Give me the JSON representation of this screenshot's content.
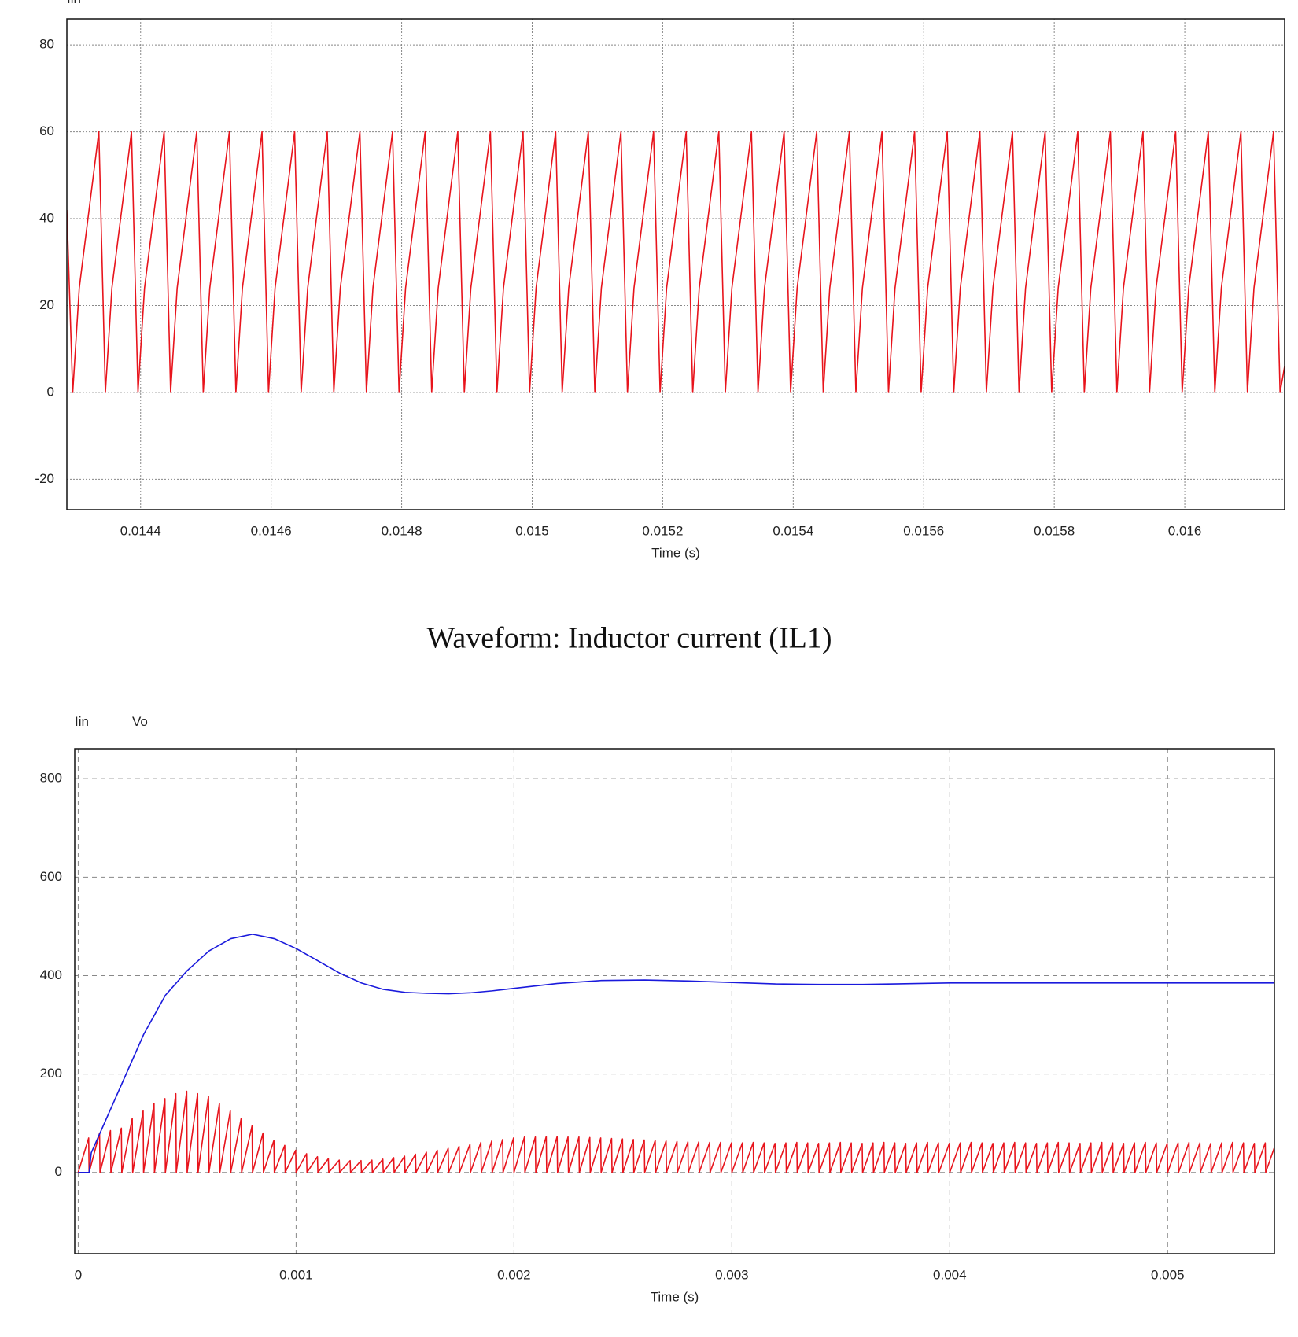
{
  "chart_data": [
    {
      "type": "line",
      "xlabel": "Time (s)",
      "grid": "dotted",
      "xlim": [
        0.014287,
        0.016153
      ],
      "ylim": [
        -27,
        86
      ],
      "xticks": [
        0.0144,
        0.0146,
        0.0148,
        0.015,
        0.0152,
        0.0154,
        0.0156,
        0.0158,
        0.016
      ],
      "yticks": [
        -20,
        0,
        20,
        40,
        60,
        80
      ],
      "series": [
        {
          "name": "Iin",
          "color": "#e8141c",
          "x": [
            0.014287,
            0.014296,
            0.014306,
            0.014336,
            0.014346,
            0.014356,
            0.014386,
            0.014396,
            0.014406,
            0.014436,
            0.014446,
            0.014456,
            0.014486,
            0.014496,
            0.014506,
            0.014536,
            0.014546,
            0.014556,
            0.014586,
            0.014596,
            0.014606,
            0.014636,
            0.014646,
            0.014656,
            0.014686,
            0.014696,
            0.014706,
            0.014736,
            0.014746,
            0.014756,
            0.014786,
            0.014796,
            0.014806,
            0.014836,
            0.014846,
            0.014856,
            0.014886,
            0.014896,
            0.014906,
            0.014936,
            0.014946,
            0.014956,
            0.014986,
            0.014996,
            0.015006,
            0.015036,
            0.015046,
            0.015056,
            0.015086,
            0.015096,
            0.015106,
            0.015136,
            0.015146,
            0.015156,
            0.015186,
            0.015196,
            0.015206,
            0.015236,
            0.015246,
            0.015256,
            0.015286,
            0.015296,
            0.015306,
            0.015336,
            0.015346,
            0.015356,
            0.015386,
            0.015396,
            0.015406,
            0.015436,
            0.015446,
            0.015456,
            0.015486,
            0.015496,
            0.015506,
            0.015536,
            0.015546,
            0.015556,
            0.015586,
            0.015596,
            0.015606,
            0.015636,
            0.015646,
            0.015656,
            0.015686,
            0.015696,
            0.015706,
            0.015736,
            0.015746,
            0.015756,
            0.015786,
            0.015796,
            0.015806,
            0.015836,
            0.015846,
            0.015856,
            0.015886,
            0.015896,
            0.015906,
            0.015936,
            0.015946,
            0.015956,
            0.015986,
            0.015996,
            0.016006,
            0.016036,
            0.016046,
            0.016056,
            0.016086,
            0.016096,
            0.016106,
            0.016136,
            0.016146,
            0.016153
          ],
          "values": [
            42,
            0,
            24,
            60,
            0,
            24,
            60,
            0,
            24,
            60,
            0,
            24,
            60,
            0,
            24,
            60,
            0,
            24,
            60,
            0,
            24,
            60,
            0,
            24,
            60,
            0,
            24,
            60,
            0,
            24,
            60,
            0,
            24,
            60,
            0,
            24,
            60,
            0,
            24,
            60,
            0,
            24,
            60,
            0,
            24,
            60,
            0,
            24,
            60,
            0,
            24,
            60,
            0,
            24,
            60,
            0,
            24,
            60,
            0,
            24,
            60,
            0,
            24,
            60,
            0,
            24,
            60,
            0,
            24,
            60,
            0,
            24,
            60,
            0,
            24,
            60,
            0,
            24,
            60,
            0,
            24,
            60,
            0,
            24,
            60,
            0,
            24,
            60,
            0,
            24,
            60,
            0,
            24,
            60,
            0,
            24,
            60,
            0,
            24,
            60,
            0,
            24,
            60,
            0,
            24,
            60,
            0,
            24,
            60,
            0,
            24,
            60,
            0,
            6
          ]
        }
      ]
    },
    {
      "type": "line",
      "xlabel": "Time (s)",
      "grid": "dashed",
      "xlim": [
        -1.6e-05,
        0.00549
      ],
      "ylim": [
        -165,
        861
      ],
      "xticks": [
        0,
        0.001,
        0.002,
        0.003,
        0.004,
        0.005
      ],
      "yticks": [
        0,
        200,
        400,
        600,
        800
      ],
      "series": [
        {
          "name": "Iin",
          "color": "#e8141c",
          "x": [
            0,
            4.8e-05,
            5e-05,
            9.8e-05,
            0.0001,
            0.000148,
            0.00015,
            0.000198,
            0.0002,
            0.000248,
            0.00025,
            0.000298,
            0.0003,
            0.000348,
            0.00035,
            0.000398,
            0.0004,
            0.000448,
            0.00045,
            0.000498,
            0.0005,
            0.000548,
            0.00055,
            0.000598,
            0.0006,
            0.000648,
            0.00065,
            0.000698,
            0.0007,
            0.000748,
            0.00075,
            0.000798,
            0.0008,
            0.000848,
            0.00085,
            0.000898,
            0.0009,
            0.000948,
            0.00095,
            0.000998,
            0.001,
            0.001048,
            0.00105,
            0.001098,
            0.0011,
            0.001148,
            0.00115,
            0.001198,
            0.0012,
            0.001248,
            0.00125,
            0.001298,
            0.0013,
            0.001348,
            0.00135,
            0.001398,
            0.0014,
            0.001448,
            0.00145,
            0.001498,
            0.0015,
            0.001548,
            0.00155,
            0.001598,
            0.0016,
            0.001648,
            0.00165,
            0.001698,
            0.0017,
            0.001748,
            0.00175,
            0.001798,
            0.0018,
            0.001848,
            0.00185,
            0.001898,
            0.0019,
            0.001948,
            0.00195,
            0.001998,
            0.002,
            0.002048,
            0.00205,
            0.002098,
            0.0021,
            0.002148,
            0.00215,
            0.002198,
            0.0022,
            0.002248,
            0.00225,
            0.002298,
            0.0023,
            0.002348,
            0.00235,
            0.002398,
            0.0024,
            0.002448,
            0.00245,
            0.002498,
            0.0025,
            0.002548,
            0.00255,
            0.002598,
            0.0026,
            0.002648,
            0.00265,
            0.002698,
            0.0027,
            0.002748,
            0.00275,
            0.002798,
            0.0028,
            0.002848,
            0.00285,
            0.002898,
            0.0029,
            0.002948,
            0.00295,
            0.002998,
            0.003,
            0.003048,
            0.00305,
            0.003098,
            0.0031,
            0.003148,
            0.00315,
            0.003198,
            0.0032,
            0.003248,
            0.00325,
            0.003298,
            0.0033,
            0.003348,
            0.00335,
            0.003398,
            0.0034,
            0.003448,
            0.00345,
            0.003498,
            0.0035,
            0.003548,
            0.00355,
            0.003598,
            0.0036,
            0.003648,
            0.00365,
            0.003698,
            0.0037,
            0.003748,
            0.00375,
            0.003798,
            0.0038,
            0.003848,
            0.00385,
            0.003898,
            0.0039,
            0.003948,
            0.00395,
            0.003998,
            0.004,
            0.004048,
            0.00405,
            0.004098,
            0.0041,
            0.004148,
            0.00415,
            0.004198,
            0.0042,
            0.004248,
            0.00425,
            0.004298,
            0.0043,
            0.004348,
            0.00435,
            0.004398,
            0.0044,
            0.004448,
            0.00445,
            0.004498,
            0.0045,
            0.004548,
            0.00455,
            0.004598,
            0.0046,
            0.004648,
            0.00465,
            0.004698,
            0.0047,
            0.004748,
            0.00475,
            0.004798,
            0.0048,
            0.004848,
            0.00485,
            0.004898,
            0.0049,
            0.004948,
            0.00495,
            0.004998,
            0.005,
            0.005048,
            0.00505,
            0.005098,
            0.0051,
            0.005148,
            0.00515,
            0.005198,
            0.0052,
            0.005248,
            0.00525,
            0.005298,
            0.0053,
            0.005348,
            0.00535,
            0.005398,
            0.0054,
            0.005448,
            0.00545,
            0.005498,
            0.0055
          ],
          "values": [
            0,
            70,
            0,
            80,
            0,
            85,
            0,
            90,
            0,
            110,
            0,
            125,
            0,
            140,
            0,
            150,
            0,
            160,
            0,
            165,
            0,
            160,
            0,
            155,
            0,
            140,
            0,
            125,
            0,
            110,
            0,
            95,
            0,
            80,
            0,
            65,
            0,
            55,
            0,
            45,
            0,
            38,
            0,
            32,
            0,
            28,
            0,
            25,
            0,
            24,
            0,
            24,
            0,
            25,
            0,
            27,
            0,
            30,
            0,
            33,
            0,
            37,
            0,
            41,
            0,
            45,
            0,
            49,
            0,
            53,
            0,
            57,
            0,
            61,
            0,
            64,
            0,
            67,
            0,
            70,
            0,
            72,
            0,
            72,
            0,
            73,
            0,
            73,
            0,
            72,
            0,
            72,
            0,
            71,
            0,
            70,
            0,
            69,
            0,
            68,
            0,
            67,
            0,
            66,
            0,
            65,
            0,
            64,
            0,
            63,
            0,
            62,
            0,
            62,
            0,
            61,
            0,
            61,
            0,
            60,
            0,
            60,
            0,
            61,
            0,
            60,
            0,
            59,
            0,
            60,
            0,
            61,
            0,
            60,
            0,
            59,
            0,
            60,
            0,
            61,
            0,
            60,
            0,
            59,
            0,
            60,
            0,
            61,
            0,
            60,
            0,
            59,
            0,
            60,
            0,
            61,
            0,
            60,
            0,
            59,
            0,
            60,
            0,
            61,
            0,
            60,
            0,
            59,
            0,
            60,
            0,
            61,
            0,
            60,
            0,
            59,
            0,
            60,
            0,
            61,
            0,
            60,
            0,
            59,
            0,
            60,
            0,
            61,
            0,
            60,
            0,
            59,
            0,
            60,
            0,
            61,
            0,
            60,
            0,
            59,
            0,
            60,
            0,
            61,
            0,
            60,
            0,
            59,
            0,
            60,
            0,
            61,
            0,
            60,
            0,
            59,
            0,
            60,
            0,
            61,
            0
          ]
        },
        {
          "name": "Vo",
          "color": "#1a1adc",
          "x": [
            0,
            5e-05,
            6e-05,
            0.0001,
            0.0002,
            0.0003,
            0.0004,
            0.0005,
            0.0006,
            0.0007,
            0.0008,
            0.0009,
            0.001,
            0.0011,
            0.0012,
            0.0013,
            0.0014,
            0.0015,
            0.0016,
            0.0017,
            0.0018,
            0.0019,
            0.002,
            0.0022,
            0.0024,
            0.0026,
            0.0028,
            0.003,
            0.0032,
            0.0034,
            0.0036,
            0.004,
            0.0045,
            0.005,
            0.0055
          ],
          "values": [
            0,
            0,
            40,
            80,
            180,
            280,
            360,
            410,
            450,
            475,
            484,
            475,
            455,
            430,
            405,
            385,
            372,
            366,
            364,
            363,
            365,
            369,
            374,
            384,
            390,
            391,
            389,
            386,
            383,
            382,
            382,
            385,
            385,
            385,
            385
          ]
        }
      ]
    }
  ],
  "caption": "Waveform: Inductor current (IL1)"
}
